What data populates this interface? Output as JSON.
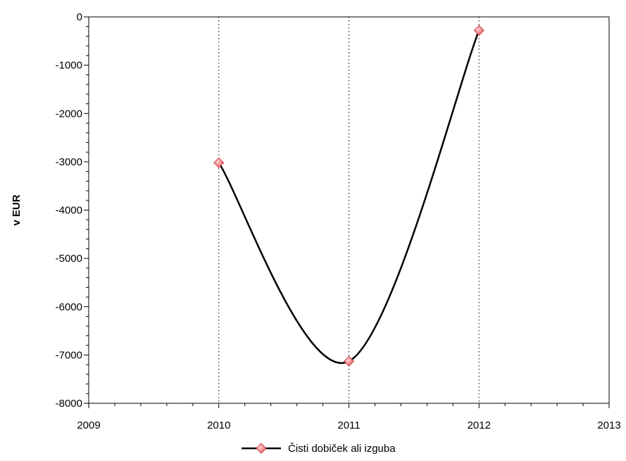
{
  "chart_data": {
    "type": "line",
    "title": "",
    "xlabel": "",
    "ylabel": "v EUR",
    "xlim": [
      2009,
      2013
    ],
    "ylim": [
      -8000,
      0
    ],
    "x_ticks": [
      "2009",
      "2010",
      "2011",
      "2012",
      "2013"
    ],
    "y_ticks": [
      "0",
      "-1000",
      "-2000",
      "-3000",
      "-4000",
      "-5000",
      "-6000",
      "-7000",
      "-8000"
    ],
    "vertical_gridlines_at": [
      2010,
      2011,
      2012
    ],
    "grid": "vertical dotted",
    "smooth": true,
    "legend_position": "bottom",
    "series": [
      {
        "name": "Čisti dobiček ali izguba",
        "x": [
          2010,
          2011,
          2012
        ],
        "values": [
          -3020,
          -7130,
          -280
        ],
        "line_color": "#000000",
        "marker": "diamond",
        "marker_color": "#e8484f"
      }
    ]
  }
}
